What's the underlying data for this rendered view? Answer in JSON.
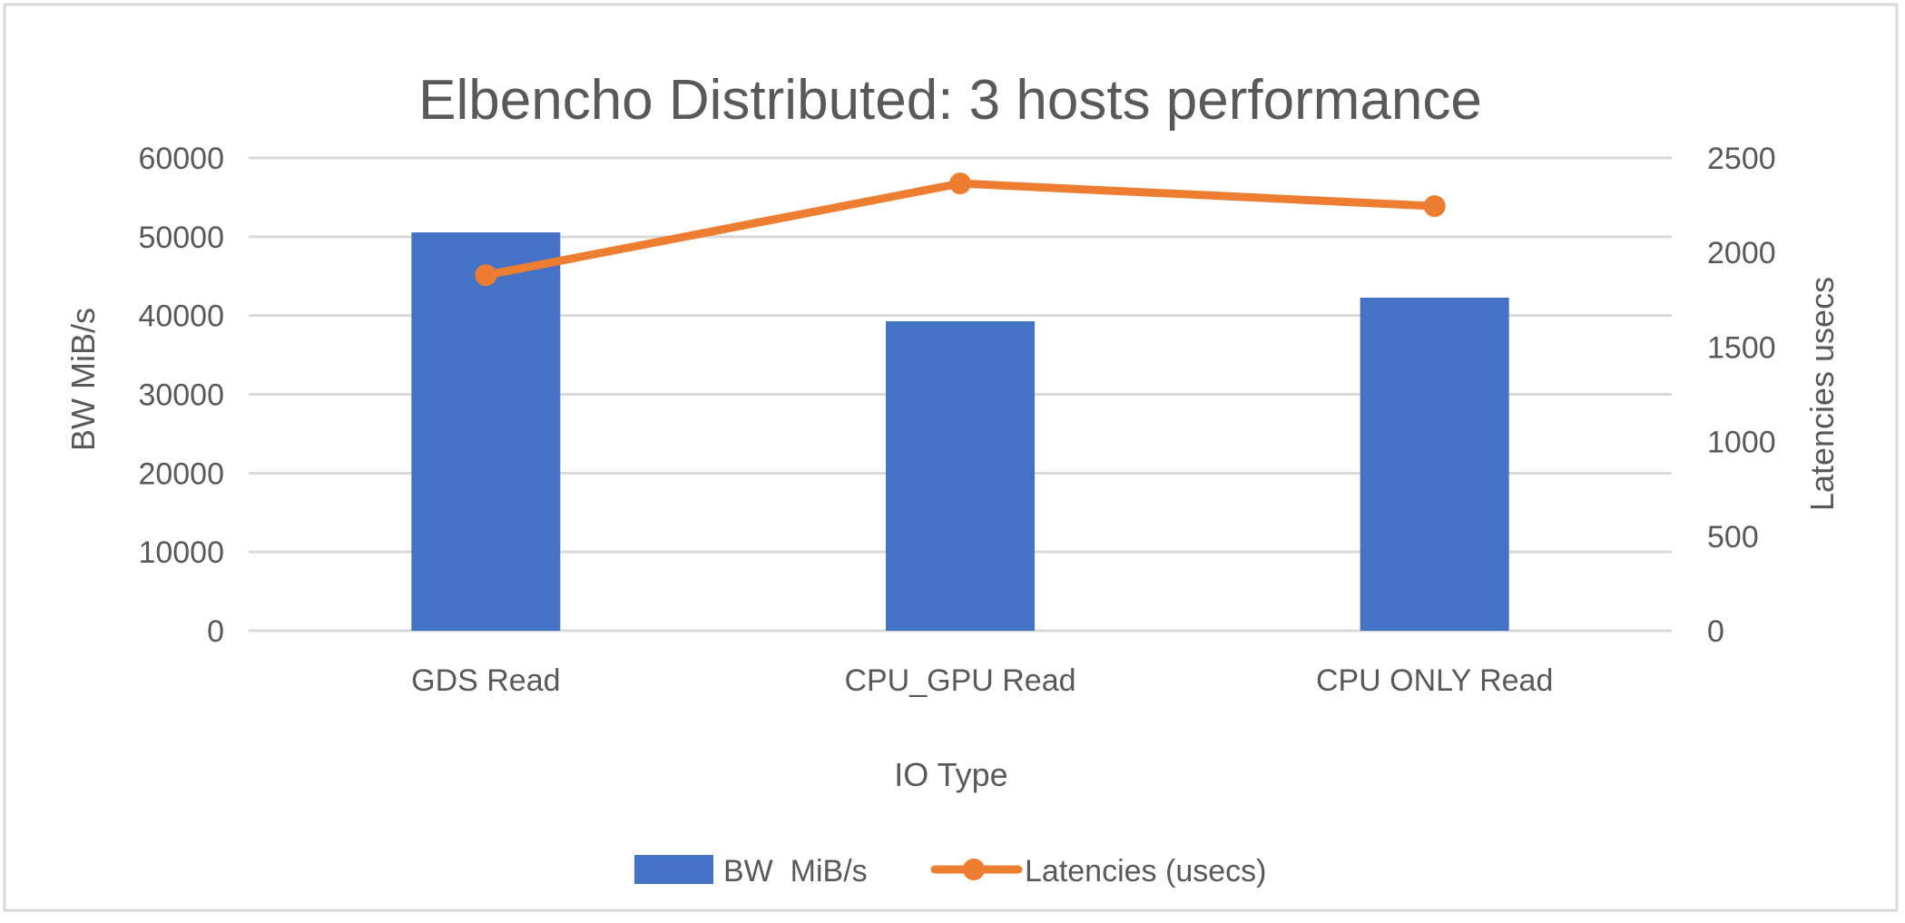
{
  "chart_data": {
    "type": "bar+line",
    "title": "Elbencho Distributed: 3 hosts performance",
    "xlabel": "IO Type",
    "ylabel": "BW MiB/s",
    "y2label": "Latencies usecs",
    "categories": [
      "GDS Read",
      "CPU_GPU Read",
      "CPU ONLY Read"
    ],
    "series": [
      {
        "name": "BW  MiB/s",
        "type": "bar",
        "axis": "left",
        "color": "#4472c4",
        "values": [
          50550,
          39270,
          42270
        ]
      },
      {
        "name": "Latencies (usecs)",
        "type": "line",
        "axis": "right",
        "color": "#ed7d31",
        "values": [
          1880,
          2365,
          2245
        ]
      }
    ],
    "ylim": [
      0,
      60000
    ],
    "y2lim": [
      0,
      2500
    ],
    "yticks": [
      "0",
      "10000",
      "20000",
      "30000",
      "40000",
      "50000",
      "60000"
    ],
    "y2ticks": [
      "0",
      "500",
      "1000",
      "1500",
      "2000",
      "2500"
    ],
    "grid": true,
    "legend_position": "bottom"
  },
  "legend": {
    "bw_label": "BW  MiB/s",
    "latency_label": "Latencies (usecs)"
  }
}
